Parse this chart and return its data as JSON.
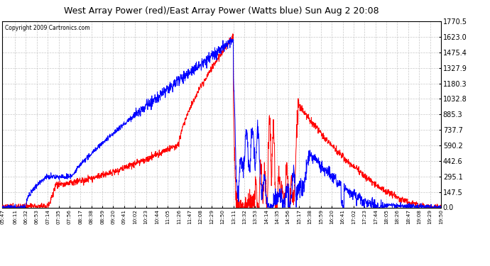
{
  "title": "West Array Power (red)/East Array Power (Watts blue) Sun Aug 2 20:08",
  "copyright": "Copyright 2009 Cartronics.com",
  "bg_color": "#ffffff",
  "plot_bg_color": "#ffffff",
  "grid_color": "#c8c8c8",
  "red_color": "#ff0000",
  "blue_color": "#0000ff",
  "yticks": [
    0.0,
    147.5,
    295.1,
    442.6,
    590.2,
    737.7,
    885.3,
    1032.8,
    1180.3,
    1327.9,
    1475.4,
    1623.0,
    1770.5
  ],
  "ymax": 1770.5,
  "ymin": 0.0,
  "tick_labels": [
    "05:47",
    "06:11",
    "06:32",
    "06:53",
    "07:14",
    "07:35",
    "07:56",
    "08:17",
    "08:38",
    "08:59",
    "09:20",
    "09:41",
    "10:02",
    "10:23",
    "10:44",
    "11:05",
    "11:26",
    "11:47",
    "12:08",
    "12:29",
    "12:50",
    "13:11",
    "13:32",
    "13:53",
    "14:14",
    "14:35",
    "14:56",
    "15:17",
    "15:38",
    "15:59",
    "16:20",
    "16:41",
    "17:02",
    "17:23",
    "17:44",
    "18:05",
    "18:26",
    "18:47",
    "19:08",
    "19:29",
    "19:50"
  ]
}
